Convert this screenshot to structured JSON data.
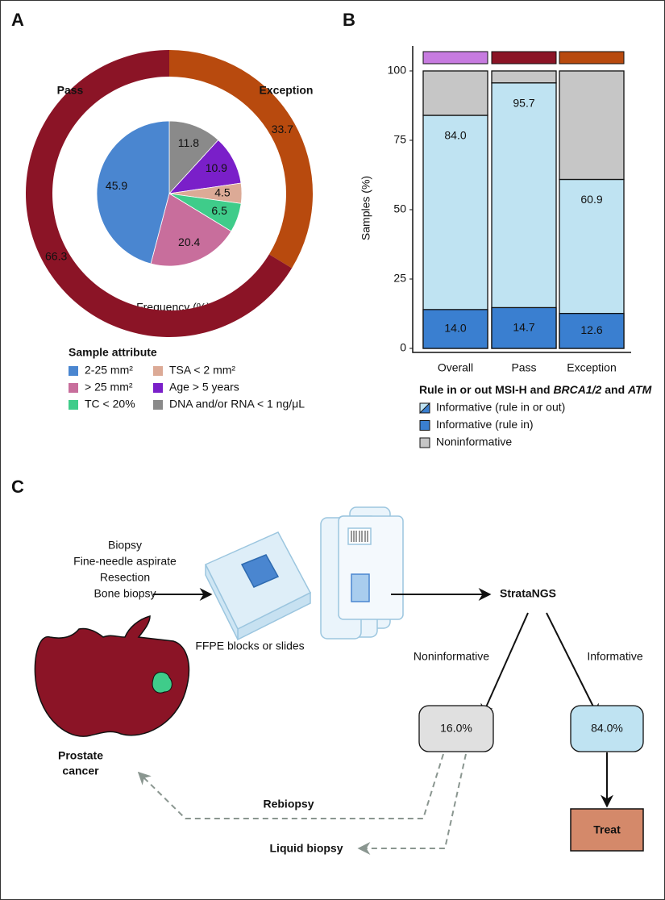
{
  "chart_data": [
    {
      "type": "pie",
      "panel": "A",
      "xlabel": "Frequency (%)",
      "outer": {
        "categories": [
          "Exception",
          "Pass"
        ],
        "values": [
          33.7,
          66.3
        ],
        "colors": [
          "#b84a0e",
          "#8b1426"
        ]
      },
      "inner": {
        "categories": [
          "DNA and/or RNA < 1 ng/μL",
          "Age > 5 years",
          "TSA < 2 mm²",
          "TC < 20%",
          "> 25 mm²",
          "2-25 mm²"
        ],
        "values": [
          11.8,
          10.9,
          4.5,
          6.5,
          20.4,
          45.9
        ],
        "colors": [
          "#8a8a8a",
          "#7a1fc9",
          "#dcaa96",
          "#3fcc8a",
          "#c86e9c",
          "#4a86d0"
        ]
      },
      "legend_title": "Sample attribute"
    },
    {
      "type": "bar",
      "panel": "B",
      "ylabel": "Samples (%)",
      "stacked": true,
      "categories": [
        "Overall",
        "Pass",
        "Exception"
      ],
      "category_colors": [
        "#c77be0",
        "#8b1426",
        "#b84a0e"
      ],
      "series": [
        {
          "name": "Informative (rule in or out)",
          "color": "#bfe3f2",
          "values": [
            84.0,
            95.7,
            60.9
          ],
          "value_labels": [
            "84.0",
            "95.7",
            "60.9"
          ]
        },
        {
          "name": "Informative (rule in)",
          "color": "#3a7fd0",
          "values": [
            14.0,
            14.7,
            12.6
          ],
          "value_labels": [
            "14.0",
            "14.7",
            "12.6"
          ],
          "overlay": true
        },
        {
          "name": "Noninformative",
          "color": "#c6c6c6",
          "values": [
            16.0,
            4.3,
            39.1
          ]
        }
      ],
      "ylim": [
        0,
        109
      ],
      "yticks": [
        0,
        25,
        50,
        75,
        100
      ],
      "legend_title": [
        "Rule in or out MSI-H and ",
        "BRCA1/2",
        " and ",
        "ATM"
      ]
    }
  ],
  "diagram": {
    "panel": "C",
    "inputs": [
      "Biopsy",
      "Fine-needle aspirate",
      "Resection",
      "Bone biopsy"
    ],
    "specimen": "FFPE blocks or slides",
    "test": "StrataNGS",
    "branches": [
      {
        "label": "Noninformative",
        "result": "16.0%"
      },
      {
        "label": "Informative",
        "result": "84.0%"
      }
    ],
    "action": "Treat",
    "organ": [
      "Prostate",
      "cancer"
    ],
    "followups": [
      "Rebiopsy",
      "Liquid biopsy"
    ]
  }
}
